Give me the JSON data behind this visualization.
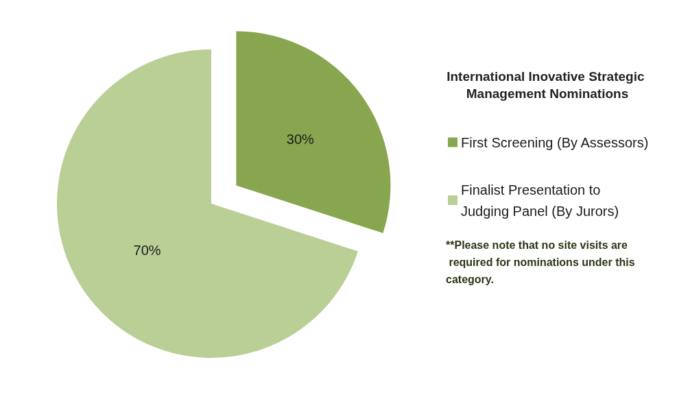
{
  "chart_data": {
    "type": "pie",
    "title": "International Inovative Strategic Management Nominations",
    "categories": [
      "First Screening (By Assessors)",
      "Finalist Presentation to Judging Panel (By Jurors)"
    ],
    "values": [
      30,
      70
    ],
    "value_labels": [
      "30%",
      "70%"
    ],
    "colors": [
      "#88a64f",
      "#b9cf95"
    ],
    "legend": "right",
    "annotations": [
      "**Please note that no site visits are required for nominations under this category."
    ]
  }
}
